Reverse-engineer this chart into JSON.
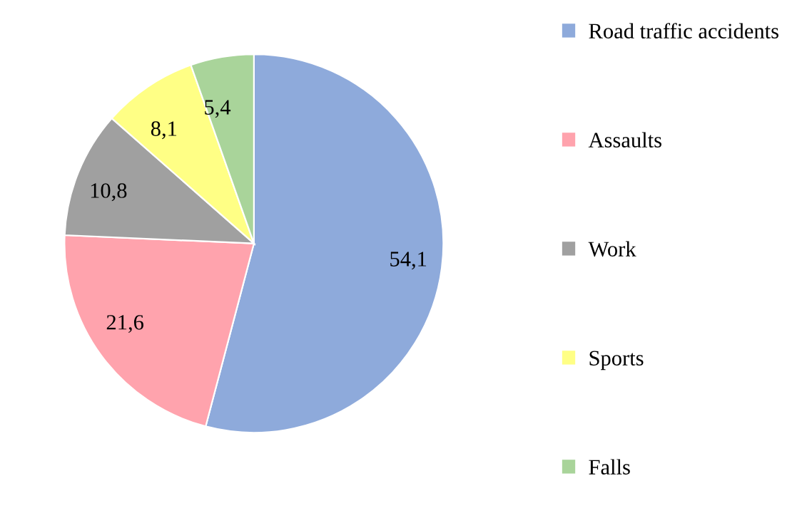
{
  "chart_data": {
    "type": "pie",
    "categories": [
      "Road traffic accidents",
      "Assaults",
      "Work",
      "Sports",
      "Falls"
    ],
    "values": [
      54.1,
      21.6,
      10.8,
      8.1,
      5.4
    ],
    "value_labels": [
      "54,1",
      "21,6",
      "10,8",
      "8,1",
      "5,4"
    ],
    "colors": [
      "#8eaadb",
      "#ffa3ad",
      "#a0a0a0",
      "#ffff85",
      "#a9d49a"
    ],
    "legend": "right"
  }
}
